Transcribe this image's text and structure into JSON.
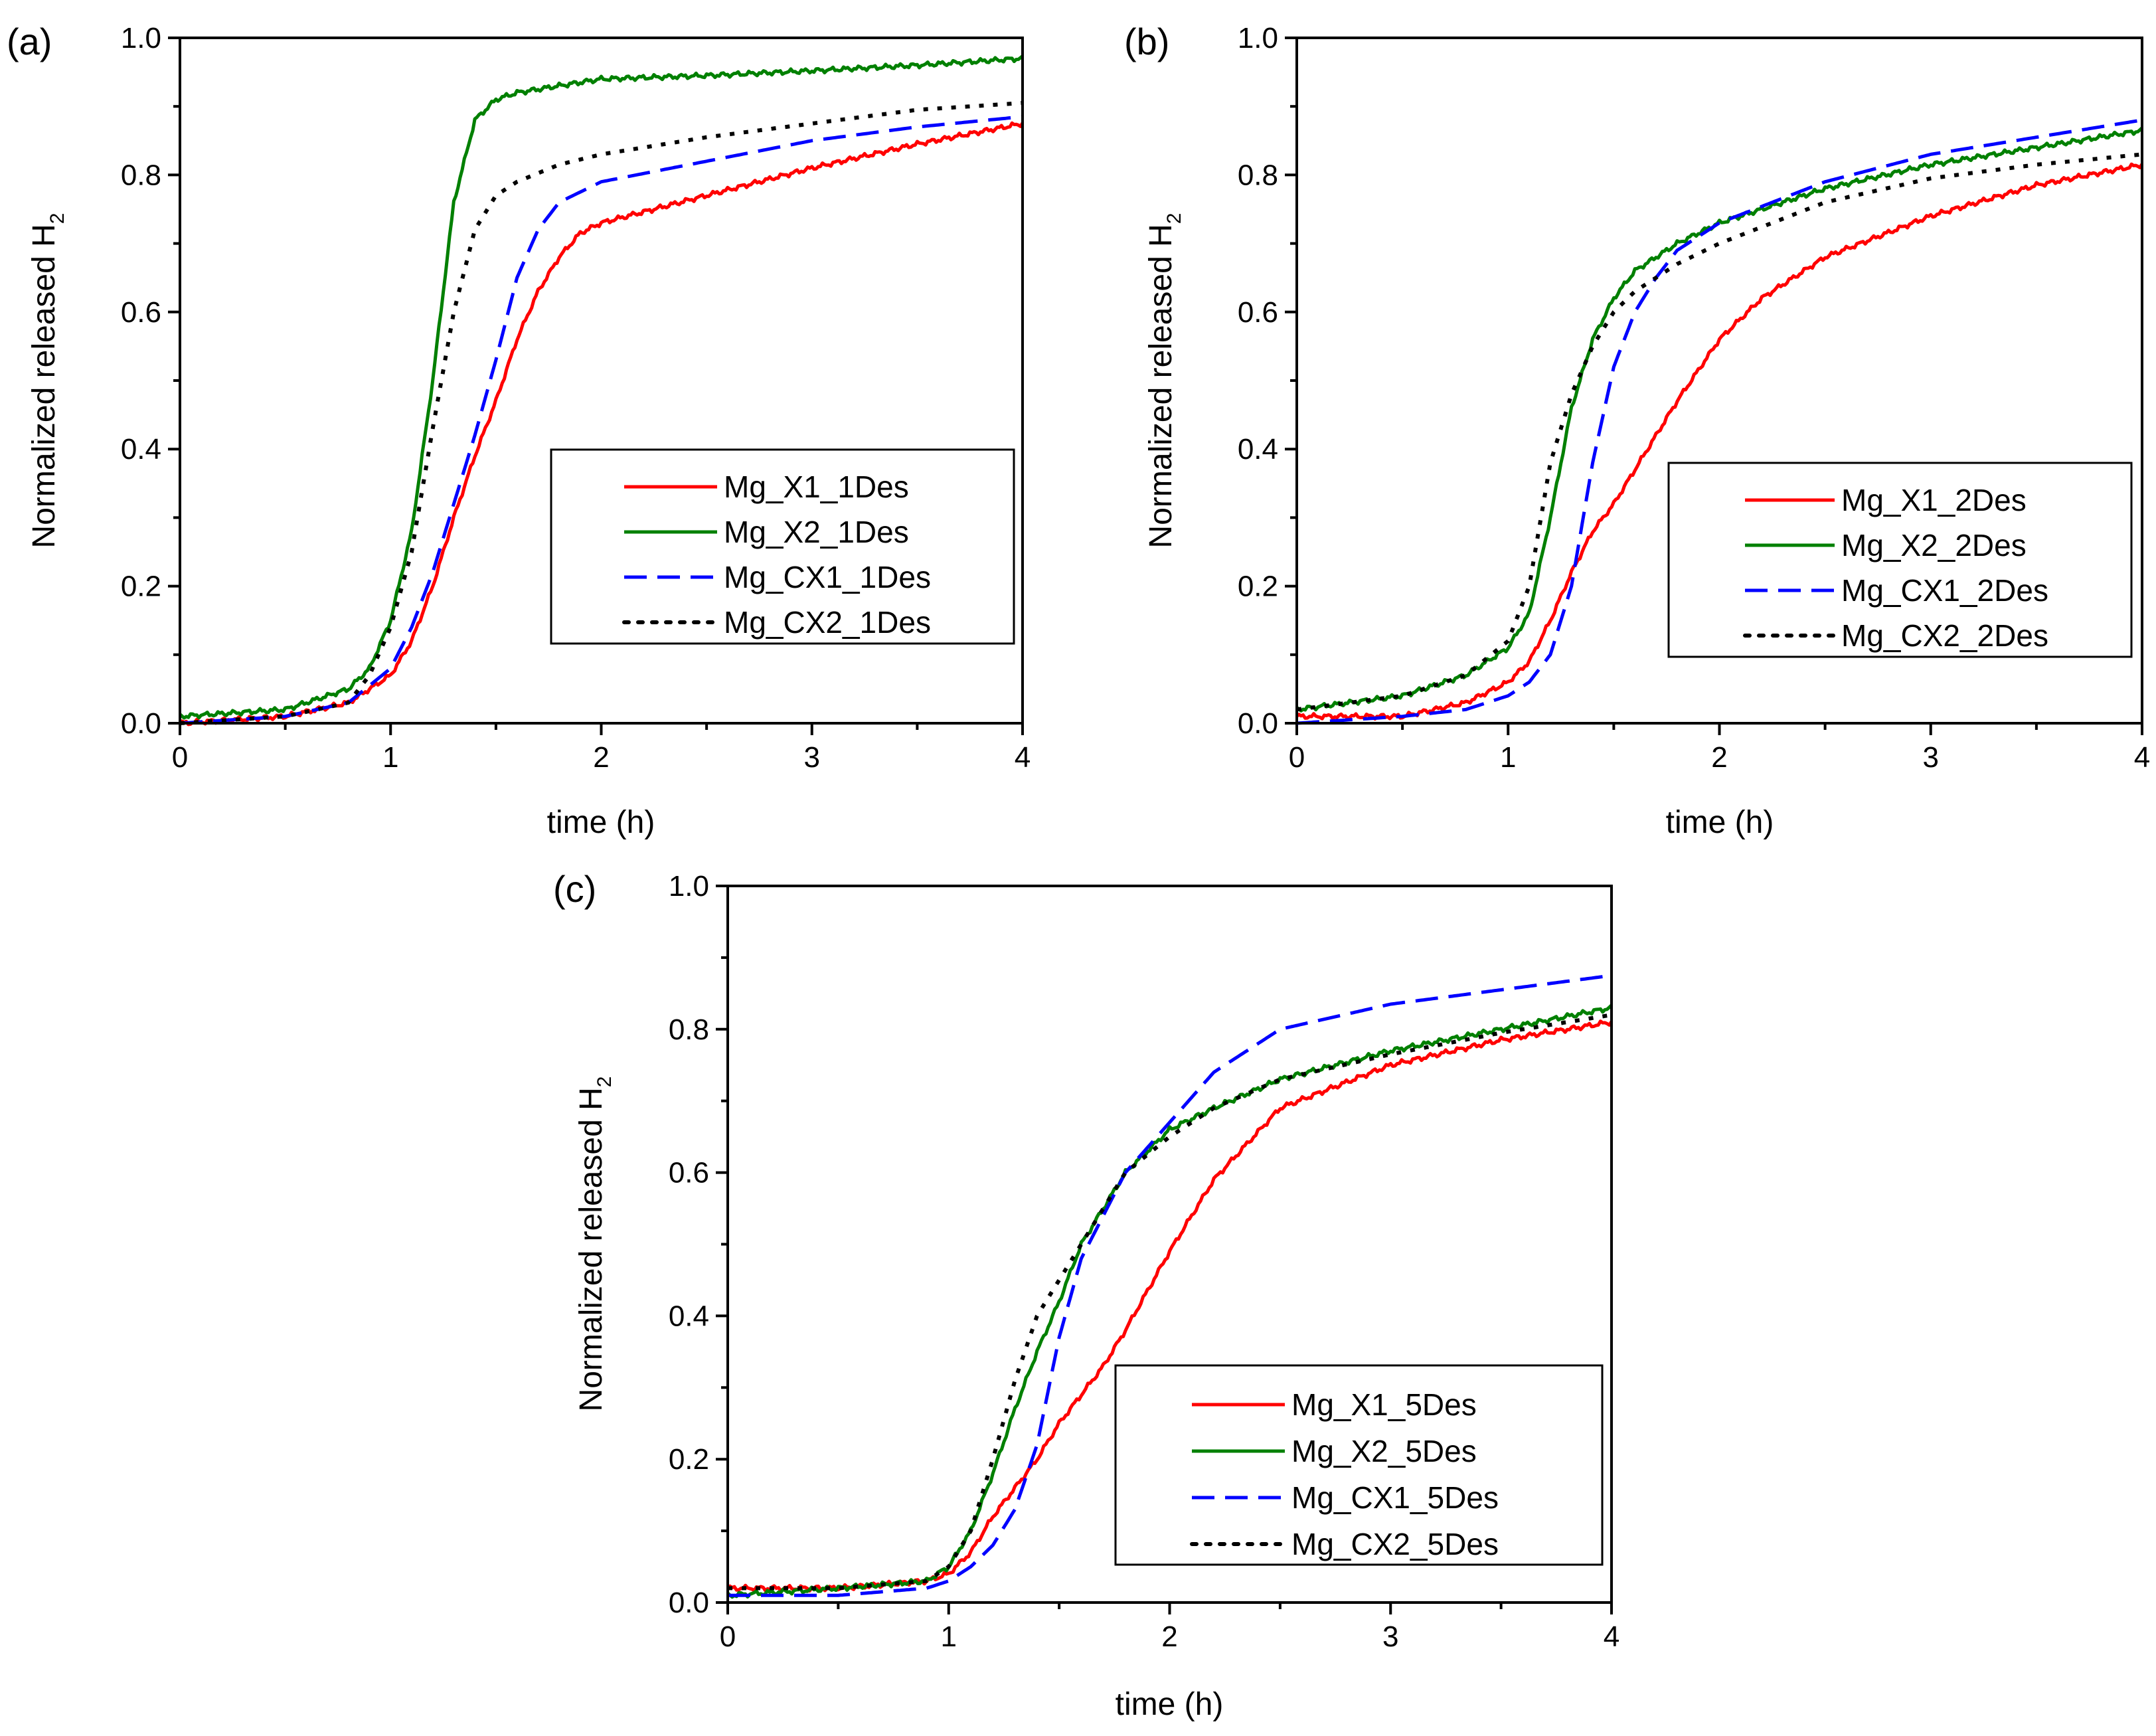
{
  "chart_data": [
    {
      "type": "line",
      "panel_label": "(a)",
      "xlabel": "time (h)",
      "ylabel": "Normalized released H",
      "ylabel_subscript": "2",
      "xlim": [
        0,
        4
      ],
      "ylim": [
        0,
        1.0
      ],
      "xticks": [
        0,
        1,
        2,
        3,
        4
      ],
      "xtick_labels": [
        "0",
        "1",
        "2",
        "3",
        "4"
      ],
      "yticks": [
        0,
        0.2,
        0.4,
        0.6,
        0.8,
        1.0
      ],
      "ytick_labels": [
        "0.0",
        "0.2",
        "0.4",
        "0.6",
        "0.8",
        "1.0"
      ],
      "legend_position": "center-right",
      "series": [
        {
          "name": "Mg_X1_1Des",
          "color": "#ff0000",
          "style": "solid",
          "x": [
            0,
            0.5,
            0.8,
            1.0,
            1.1,
            1.2,
            1.3,
            1.4,
            1.5,
            1.6,
            1.7,
            1.8,
            1.9,
            2.0,
            2.5,
            3.0,
            3.5,
            4.0
          ],
          "y": [
            0.0,
            0.01,
            0.03,
            0.07,
            0.12,
            0.2,
            0.3,
            0.39,
            0.47,
            0.56,
            0.63,
            0.68,
            0.715,
            0.73,
            0.77,
            0.81,
            0.845,
            0.875
          ]
        },
        {
          "name": "Mg_X2_1Des",
          "color": "#008000",
          "style": "solid",
          "x": [
            0,
            0.5,
            0.8,
            0.9,
            1.0,
            1.1,
            1.2,
            1.3,
            1.4,
            1.5,
            1.6,
            1.8,
            2.0,
            2.5,
            3.0,
            3.5,
            4.0
          ],
          "y": [
            0.01,
            0.02,
            0.05,
            0.08,
            0.15,
            0.28,
            0.5,
            0.76,
            0.88,
            0.91,
            0.92,
            0.93,
            0.94,
            0.945,
            0.952,
            0.96,
            0.97
          ]
        },
        {
          "name": "Mg_CX1_1Des",
          "color": "#0000ff",
          "style": "dashed",
          "x": [
            0,
            0.5,
            0.8,
            1.0,
            1.1,
            1.2,
            1.3,
            1.4,
            1.5,
            1.6,
            1.7,
            1.8,
            2.0,
            2.5,
            3.0,
            3.5,
            4.0
          ],
          "y": [
            0.0,
            0.01,
            0.03,
            0.08,
            0.14,
            0.22,
            0.32,
            0.42,
            0.53,
            0.65,
            0.72,
            0.76,
            0.79,
            0.82,
            0.85,
            0.87,
            0.885
          ]
        },
        {
          "name": "Mg_CX2_1Des",
          "color": "#000000",
          "style": "dotted",
          "x": [
            0,
            0.5,
            0.8,
            0.9,
            1.0,
            1.1,
            1.2,
            1.3,
            1.4,
            1.5,
            1.6,
            1.8,
            2.0,
            2.5,
            3.0,
            3.5,
            4.0
          ],
          "y": [
            0.0,
            0.01,
            0.03,
            0.07,
            0.14,
            0.25,
            0.43,
            0.6,
            0.72,
            0.77,
            0.79,
            0.815,
            0.83,
            0.855,
            0.875,
            0.895,
            0.905
          ]
        }
      ]
    },
    {
      "type": "line",
      "panel_label": "(b)",
      "xlabel": "time (h)",
      "ylabel": "Normalized released H",
      "ylabel_subscript": "2",
      "xlim": [
        0,
        4
      ],
      "ylim": [
        0,
        1.0
      ],
      "xticks": [
        0,
        1,
        2,
        3,
        4
      ],
      "xtick_labels": [
        "0",
        "1",
        "2",
        "3",
        "4"
      ],
      "yticks": [
        0,
        0.2,
        0.4,
        0.6,
        0.8,
        1.0
      ],
      "ytick_labels": [
        "0.0",
        "0.2",
        "0.4",
        "0.6",
        "0.8",
        "1.0"
      ],
      "legend_position": "center-right",
      "series": [
        {
          "name": "Mg_X1_2Des",
          "color": "#ff0000",
          "style": "solid",
          "x": [
            0,
            0.5,
            0.8,
            1.0,
            1.1,
            1.2,
            1.3,
            1.4,
            1.5,
            1.6,
            1.8,
            2.0,
            2.2,
            2.5,
            3.0,
            3.5,
            4.0
          ],
          "y": [
            0.01,
            0.01,
            0.03,
            0.06,
            0.09,
            0.15,
            0.22,
            0.28,
            0.32,
            0.37,
            0.47,
            0.56,
            0.62,
            0.68,
            0.74,
            0.785,
            0.815
          ]
        },
        {
          "name": "Mg_X2_2Des",
          "color": "#008000",
          "style": "solid",
          "x": [
            0,
            0.5,
            0.8,
            1.0,
            1.1,
            1.2,
            1.3,
            1.4,
            1.5,
            1.6,
            1.8,
            2.0,
            2.5,
            3.0,
            3.5,
            4.0
          ],
          "y": [
            0.02,
            0.04,
            0.07,
            0.11,
            0.16,
            0.3,
            0.46,
            0.56,
            0.62,
            0.66,
            0.7,
            0.73,
            0.78,
            0.815,
            0.84,
            0.865
          ]
        },
        {
          "name": "Mg_CX1_2Des",
          "color": "#0000ff",
          "style": "dashed",
          "x": [
            0,
            0.5,
            0.8,
            1.0,
            1.1,
            1.2,
            1.3,
            1.4,
            1.5,
            1.6,
            1.7,
            1.8,
            2.0,
            2.5,
            3.0,
            3.5,
            4.0
          ],
          "y": [
            0.0,
            0.01,
            0.02,
            0.04,
            0.06,
            0.1,
            0.2,
            0.38,
            0.52,
            0.6,
            0.65,
            0.69,
            0.73,
            0.79,
            0.83,
            0.855,
            0.88
          ]
        },
        {
          "name": "Mg_CX2_2Des",
          "color": "#000000",
          "style": "dotted",
          "x": [
            0,
            0.5,
            0.8,
            1.0,
            1.1,
            1.2,
            1.3,
            1.4,
            1.5,
            1.6,
            1.8,
            2.0,
            2.5,
            3.0,
            3.5,
            4.0
          ],
          "y": [
            0.02,
            0.04,
            0.07,
            0.12,
            0.2,
            0.38,
            0.48,
            0.55,
            0.6,
            0.63,
            0.67,
            0.7,
            0.76,
            0.795,
            0.815,
            0.83
          ]
        }
      ]
    },
    {
      "type": "line",
      "panel_label": "(c)",
      "xlabel": "time (h)",
      "ylabel": "Normalized released H",
      "ylabel_subscript": "2",
      "xlim": [
        0,
        4
      ],
      "ylim": [
        0,
        1.0
      ],
      "xticks": [
        0,
        1,
        2,
        3,
        4
      ],
      "xtick_labels": [
        "0",
        "1",
        "2",
        "3",
        "4"
      ],
      "yticks": [
        0,
        0.2,
        0.4,
        0.6,
        0.8,
        1.0
      ],
      "ytick_labels": [
        "0.0",
        "0.2",
        "0.4",
        "0.6",
        "0.8",
        "1.0"
      ],
      "legend_position": "bottom-right",
      "series": [
        {
          "name": "Mg_X1_5Des",
          "color": "#ff0000",
          "style": "solid",
          "x": [
            0,
            0.5,
            0.9,
            1.0,
            1.1,
            1.2,
            1.3,
            1.4,
            1.5,
            1.6,
            1.7,
            1.8,
            2.0,
            2.2,
            2.5,
            3.0,
            3.5,
            4.0
          ],
          "y": [
            0.02,
            0.02,
            0.03,
            0.04,
            0.07,
            0.12,
            0.16,
            0.2,
            0.25,
            0.29,
            0.33,
            0.38,
            0.49,
            0.59,
            0.69,
            0.75,
            0.785,
            0.81
          ]
        },
        {
          "name": "Mg_X2_5Des",
          "color": "#008000",
          "style": "solid",
          "x": [
            0,
            0.5,
            0.9,
            1.0,
            1.1,
            1.2,
            1.3,
            1.4,
            1.5,
            1.6,
            1.8,
            2.0,
            2.2,
            2.5,
            3.0,
            3.5,
            4.0
          ],
          "y": [
            0.01,
            0.02,
            0.03,
            0.05,
            0.1,
            0.18,
            0.27,
            0.35,
            0.42,
            0.5,
            0.6,
            0.66,
            0.69,
            0.73,
            0.77,
            0.8,
            0.83
          ]
        },
        {
          "name": "Mg_CX1_5Des",
          "color": "#0000ff",
          "style": "dashed",
          "x": [
            0,
            0.5,
            0.9,
            1.0,
            1.1,
            1.2,
            1.3,
            1.4,
            1.5,
            1.6,
            1.8,
            2.0,
            2.2,
            2.5,
            3.0,
            3.5,
            4.0
          ],
          "y": [
            0.01,
            0.01,
            0.02,
            0.03,
            0.05,
            0.08,
            0.13,
            0.22,
            0.37,
            0.48,
            0.6,
            0.67,
            0.74,
            0.8,
            0.835,
            0.855,
            0.875
          ]
        },
        {
          "name": "Mg_CX2_5Des",
          "color": "#000000",
          "style": "dotted",
          "x": [
            0,
            0.5,
            0.9,
            1.0,
            1.1,
            1.2,
            1.3,
            1.4,
            1.5,
            1.6,
            1.8,
            2.0,
            2.2,
            2.5,
            3.0,
            3.5,
            4.0
          ],
          "y": [
            0.02,
            0.02,
            0.03,
            0.05,
            0.1,
            0.2,
            0.31,
            0.4,
            0.45,
            0.5,
            0.6,
            0.65,
            0.69,
            0.73,
            0.765,
            0.795,
            0.82
          ]
        }
      ]
    }
  ]
}
